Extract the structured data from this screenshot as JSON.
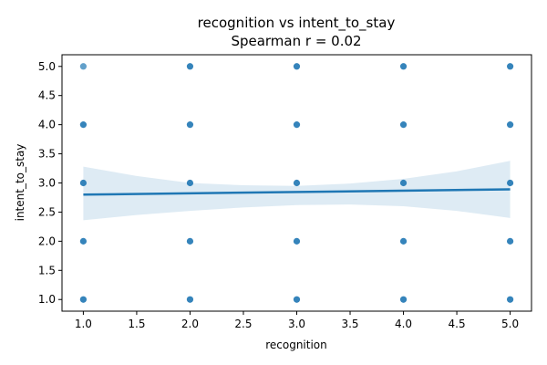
{
  "chart_data": {
    "type": "scatter",
    "title": "recognition vs intent_to_stay",
    "subtitle": "Spearman r = 0.02",
    "xlabel": "recognition",
    "ylabel": "intent_to_stay",
    "xlim": [
      0.8,
      5.2
    ],
    "ylim": [
      0.8,
      5.2
    ],
    "xticks": [
      "1.0",
      "1.5",
      "2.0",
      "2.5",
      "3.0",
      "3.5",
      "4.0",
      "4.5",
      "5.0"
    ],
    "yticks": [
      "1.0",
      "1.5",
      "2.0",
      "2.5",
      "3.0",
      "3.5",
      "4.0",
      "4.5",
      "5.0"
    ],
    "grid": false,
    "point_color": "#1f77b4",
    "points": [
      {
        "x": 1,
        "y": 5
      },
      {
        "x": 1,
        "y": 4
      },
      {
        "x": 1,
        "y": 3
      },
      {
        "x": 1,
        "y": 2
      },
      {
        "x": 1,
        "y": 1
      },
      {
        "x": 2,
        "y": 5
      },
      {
        "x": 2,
        "y": 4
      },
      {
        "x": 2,
        "y": 3
      },
      {
        "x": 2,
        "y": 2
      },
      {
        "x": 2,
        "y": 1
      },
      {
        "x": 3,
        "y": 5
      },
      {
        "x": 3,
        "y": 4
      },
      {
        "x": 3,
        "y": 3
      },
      {
        "x": 3,
        "y": 2
      },
      {
        "x": 3,
        "y": 1
      },
      {
        "x": 4,
        "y": 5
      },
      {
        "x": 4,
        "y": 4
      },
      {
        "x": 4,
        "y": 3
      },
      {
        "x": 4,
        "y": 2
      },
      {
        "x": 4,
        "y": 1
      },
      {
        "x": 5,
        "y": 5
      },
      {
        "x": 5,
        "y": 4
      },
      {
        "x": 5,
        "y": 3
      },
      {
        "x": 5,
        "y": 2
      },
      {
        "x": 5,
        "y": 1
      }
    ],
    "regression": {
      "x": [
        1,
        5
      ],
      "y": [
        2.8,
        2.89
      ]
    },
    "confidence_band": {
      "x": [
        1.0,
        1.5,
        2.0,
        2.5,
        3.0,
        3.5,
        4.0,
        4.5,
        5.0
      ],
      "upper": [
        3.28,
        3.12,
        3.0,
        2.96,
        2.95,
        2.99,
        3.07,
        3.2,
        3.38
      ],
      "lower": [
        2.36,
        2.45,
        2.52,
        2.58,
        2.62,
        2.63,
        2.6,
        2.52,
        2.4
      ]
    }
  }
}
